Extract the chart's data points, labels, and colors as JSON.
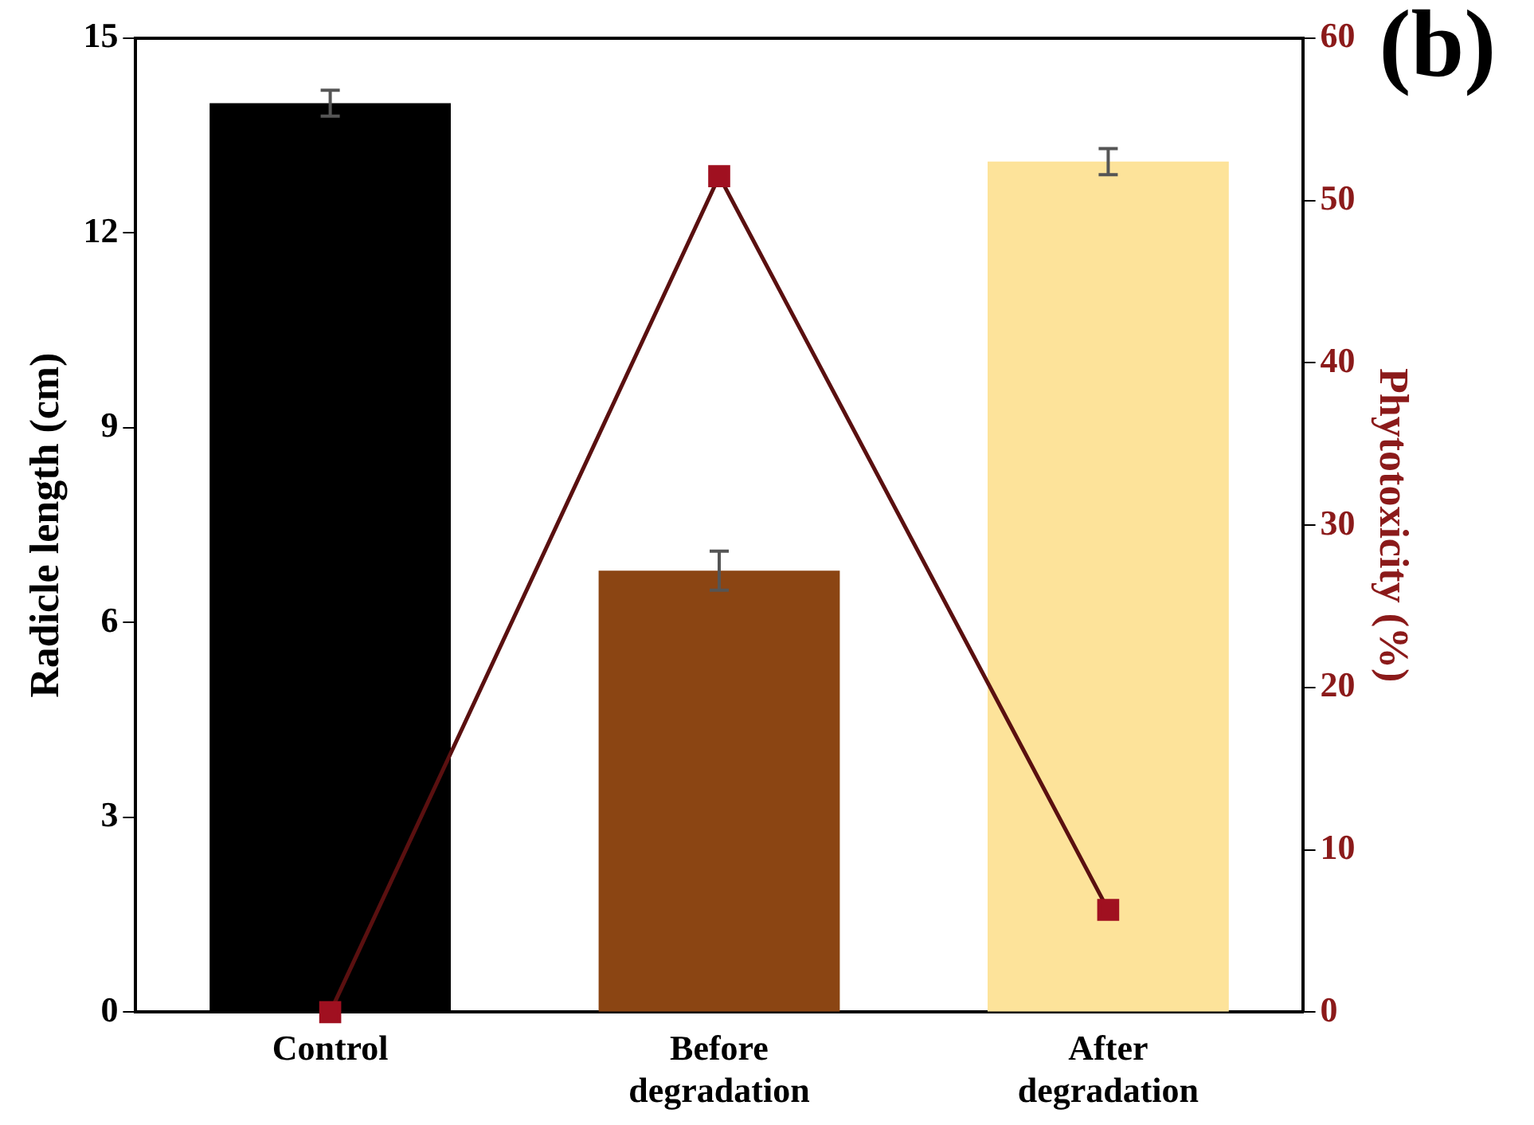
{
  "chart_data": {
    "type": "bar",
    "categories": [
      "Control",
      "Before degradation",
      "After degradation"
    ],
    "series": [
      {
        "colors": [
          "#000000",
          "#8b4513",
          "#fde39a"
        ],
        "values": [
          14.0,
          6.8,
          13.1
        ],
        "errors": [
          0.2,
          0.3,
          0.2
        ]
      },
      {
        "type": "line",
        "axis": "y2",
        "color": "#5a1010",
        "marker": "square",
        "values": [
          0,
          51.5,
          6.3
        ]
      }
    ],
    "ylabel": "Radicle length (cm)",
    "y2label": "Phytotoxicity (%)",
    "ylim": [
      0,
      15
    ],
    "yticks": [
      0,
      3,
      6,
      9,
      12,
      15
    ],
    "y2lim": [
      0,
      60
    ],
    "y2ticks": [
      0,
      10,
      20,
      30,
      40,
      50,
      60
    ],
    "grid": false,
    "legend": false,
    "annotations": [
      "(b)"
    ]
  }
}
